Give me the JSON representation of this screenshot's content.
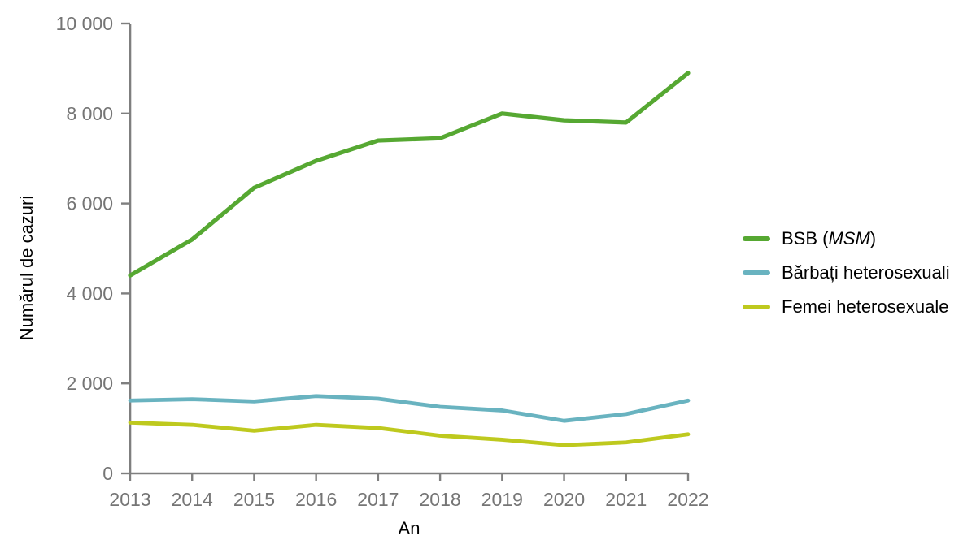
{
  "chart_data": {
    "type": "line",
    "title": "",
    "xlabel": "An",
    "ylabel": "Numărul de cazuri",
    "ylim": [
      0,
      10000
    ],
    "grid": false,
    "legend_position": "right",
    "x": [
      2013,
      2014,
      2015,
      2016,
      2017,
      2018,
      2019,
      2020,
      2021,
      2022
    ],
    "x_tick_labels": [
      "2013",
      "2014",
      "2015",
      "2016",
      "2017",
      "2018",
      "2019",
      "2020",
      "2021",
      "2022"
    ],
    "y_ticks": [
      {
        "value": 0,
        "label": "0"
      },
      {
        "value": 2000,
        "label": "2 000"
      },
      {
        "value": 4000,
        "label": "4 000"
      },
      {
        "value": 6000,
        "label": "6 000"
      },
      {
        "value": 8000,
        "label": "8 000"
      },
      {
        "value": 10000,
        "label": "10 000"
      }
    ],
    "series": [
      {
        "name": "BSB (MSM)",
        "color": "#56a832",
        "stroke_width": 5.2,
        "values": [
          4400,
          5200,
          6350,
          6950,
          7400,
          7450,
          8000,
          7850,
          7800,
          8900
        ]
      },
      {
        "name": "Bărbați heterosexuali",
        "color": "#69b3c0",
        "stroke_width": 4.8,
        "values": [
          1620,
          1650,
          1600,
          1720,
          1660,
          1480,
          1400,
          1170,
          1320,
          1620
        ]
      },
      {
        "name": "Femei heterosexuale",
        "color": "#bec91e",
        "stroke_width": 4.8,
        "values": [
          1130,
          1080,
          950,
          1080,
          1010,
          840,
          750,
          630,
          690,
          870
        ]
      }
    ]
  },
  "axes": {
    "axis_color": "#7f7f7f",
    "tick_label_color": "#757575"
  },
  "legend": {
    "items": [
      {
        "prefix": "BSB (",
        "italic": "MSM",
        "suffix": ")"
      },
      {
        "label": "Bărbați heterosexuali"
      },
      {
        "label": "Femei heterosexuale"
      }
    ]
  }
}
